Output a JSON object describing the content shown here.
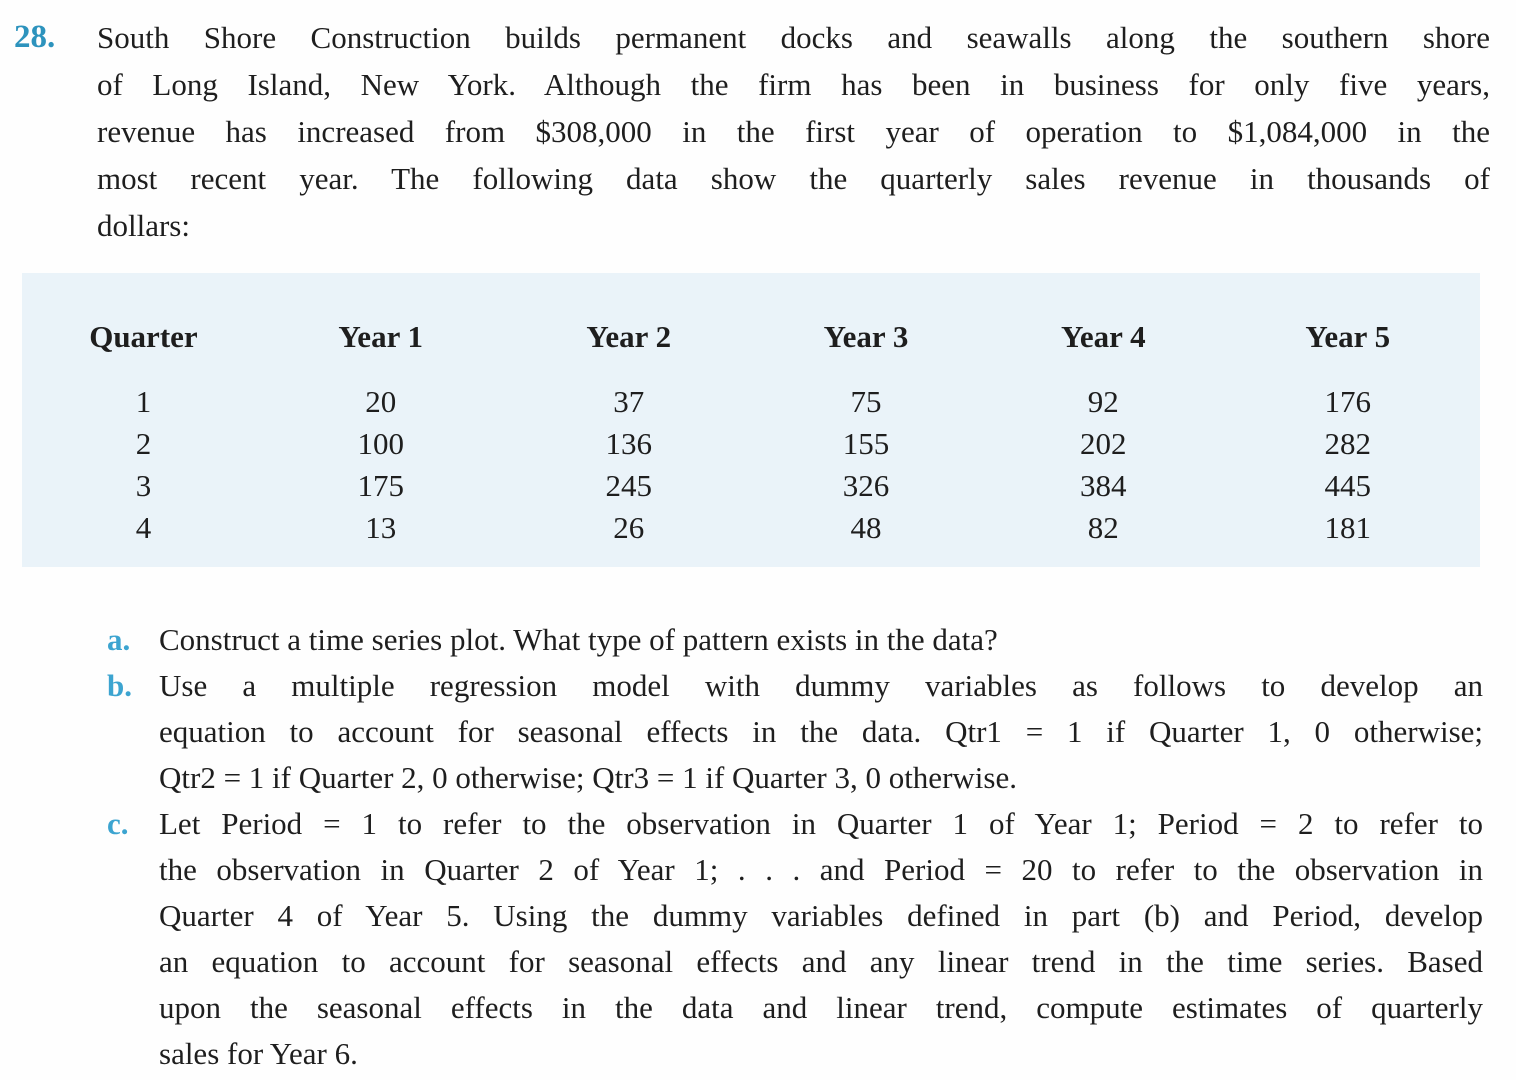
{
  "problem": {
    "number": "28.",
    "intro_lines": [
      "South Shore Construction builds permanent docks and seawalls along the southern shore",
      "of Long Island, New York. Although the firm has been in business for only five years,",
      "revenue has increased from $308,000 in the first year of operation to $1,084,000 in the",
      "most recent year. The following data show the quarterly sales revenue in thousands of",
      "dollars:"
    ]
  },
  "table": {
    "headers": [
      "Quarter",
      "Year 1",
      "Year 2",
      "Year 3",
      "Year 4",
      "Year 5"
    ],
    "rows": [
      [
        "1",
        "20",
        "37",
        "75",
        "92",
        "176"
      ],
      [
        "2",
        "100",
        "136",
        "155",
        "202",
        "282"
      ],
      [
        "3",
        "175",
        "245",
        "326",
        "384",
        "445"
      ],
      [
        "4",
        "13",
        "26",
        "48",
        "82",
        "181"
      ]
    ]
  },
  "chart_data": {
    "type": "table",
    "title": "Quarterly sales revenue in thousands of dollars",
    "categories": [
      "Quarter 1",
      "Quarter 2",
      "Quarter 3",
      "Quarter 4"
    ],
    "series": [
      {
        "name": "Year 1",
        "values": [
          20,
          100,
          175,
          13
        ]
      },
      {
        "name": "Year 2",
        "values": [
          37,
          136,
          245,
          26
        ]
      },
      {
        "name": "Year 3",
        "values": [
          75,
          155,
          326,
          48
        ]
      },
      {
        "name": "Year 4",
        "values": [
          92,
          202,
          384,
          82
        ]
      },
      {
        "name": "Year 5",
        "values": [
          176,
          282,
          445,
          181
        ]
      }
    ]
  },
  "parts": {
    "a": {
      "label": "a.",
      "lines": [
        "Construct a time series plot. What type of pattern exists in the data?"
      ]
    },
    "b": {
      "label": "b.",
      "lines": [
        "Use a multiple regression model with dummy variables as follows to develop an",
        "equation to account for seasonal effects in the data. Qtr1 = 1 if Quarter 1, 0 otherwise;",
        "Qtr2 = 1 if Quarter 2, 0 otherwise; Qtr3 = 1 if Quarter 3, 0 otherwise."
      ]
    },
    "c": {
      "label": "c.",
      "lines": [
        "Let Period = 1 to refer to the observation in Quarter 1 of Year 1; Period = 2 to refer to",
        "the observation in Quarter 2 of Year 1; . . . and Period = 20 to refer to the observation in",
        "Quarter 4 of Year 5. Using the dummy variables defined in part (b) and Period, develop",
        "an equation to account for seasonal effects and any linear trend in the time series. Based",
        "upon the seasonal effects in the data and linear trend, compute estimates of quarterly",
        "sales for Year 6."
      ]
    }
  },
  "colors": {
    "problem_number": "#2d93bd",
    "part_letter": "#3ca4d0",
    "panel_background": "#eaf3f9",
    "body_text": "#1e1e1e"
  }
}
